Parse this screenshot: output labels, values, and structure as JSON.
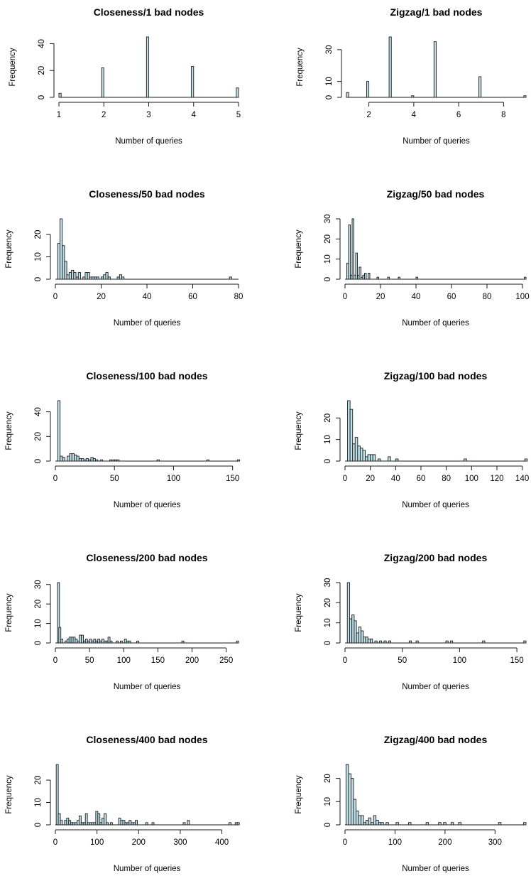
{
  "chart_data": [
    {
      "type": "bar",
      "title": "Closeness/1 bad nodes",
      "xlabel": "Number of queries",
      "ylabel": "Frequency",
      "xlim": [
        1,
        5
      ],
      "ylim": [
        0,
        45
      ],
      "xticks": [
        1,
        2,
        3,
        4,
        5
      ],
      "yticks": [
        0,
        20,
        40
      ],
      "bin_width": 0.05,
      "bins": [
        {
          "x": 1.0,
          "y": 3
        },
        {
          "x": 1.95,
          "y": 22
        },
        {
          "x": 2.95,
          "y": 45
        },
        {
          "x": 3.95,
          "y": 23
        },
        {
          "x": 4.95,
          "y": 7
        }
      ]
    },
    {
      "type": "bar",
      "title": "Zigzag/1 bad nodes",
      "xlabel": "Number of queries",
      "ylabel": "Frequency",
      "xlim": [
        1,
        9
      ],
      "ylim": [
        0,
        38
      ],
      "xticks": [
        2,
        4,
        6,
        8
      ],
      "yticks": [
        0,
        10,
        30
      ],
      "bin_width": 0.1,
      "bins": [
        {
          "x": 1.0,
          "y": 3
        },
        {
          "x": 1.9,
          "y": 10
        },
        {
          "x": 2.9,
          "y": 38
        },
        {
          "x": 3.9,
          "y": 1
        },
        {
          "x": 4.9,
          "y": 35
        },
        {
          "x": 6.9,
          "y": 13
        },
        {
          "x": 8.9,
          "y": 1
        }
      ]
    },
    {
      "type": "bar",
      "title": "Closeness/50 bad nodes",
      "xlabel": "Number of queries",
      "ylabel": "Frequency",
      "xlim": [
        0,
        80
      ],
      "ylim": [
        0,
        27
      ],
      "xticks": [
        0,
        20,
        40,
        60,
        80
      ],
      "yticks": [
        0,
        10,
        20
      ],
      "bin_width": 1,
      "bins": [
        {
          "x": 1,
          "y": 16
        },
        {
          "x": 2,
          "y": 27
        },
        {
          "x": 3,
          "y": 15
        },
        {
          "x": 4,
          "y": 8
        },
        {
          "x": 5,
          "y": 2
        },
        {
          "x": 6,
          "y": 3
        },
        {
          "x": 7,
          "y": 4
        },
        {
          "x": 8,
          "y": 3
        },
        {
          "x": 9,
          "y": 1
        },
        {
          "x": 10,
          "y": 3
        },
        {
          "x": 12,
          "y": 1
        },
        {
          "x": 13,
          "y": 3
        },
        {
          "x": 14,
          "y": 3
        },
        {
          "x": 15,
          "y": 1
        },
        {
          "x": 16,
          "y": 1
        },
        {
          "x": 17,
          "y": 1
        },
        {
          "x": 18,
          "y": 1
        },
        {
          "x": 20,
          "y": 1
        },
        {
          "x": 21,
          "y": 2
        },
        {
          "x": 22,
          "y": 3
        },
        {
          "x": 23,
          "y": 1
        },
        {
          "x": 27,
          "y": 1
        },
        {
          "x": 28,
          "y": 2
        },
        {
          "x": 29,
          "y": 1
        },
        {
          "x": 76,
          "y": 1
        }
      ]
    },
    {
      "type": "bar",
      "title": "Zigzag/50 bad nodes",
      "xlabel": "Number of queries",
      "ylabel": "Frequency",
      "xlim": [
        0,
        102
      ],
      "ylim": [
        0,
        30
      ],
      "xticks": [
        0,
        20,
        40,
        60,
        80,
        100
      ],
      "yticks": [
        0,
        10,
        20,
        30
      ],
      "bin_width": 1,
      "bins": [
        {
          "x": 1,
          "y": 8
        },
        {
          "x": 2,
          "y": 27
        },
        {
          "x": 3,
          "y": 2
        },
        {
          "x": 4,
          "y": 30
        },
        {
          "x": 5,
          "y": 2
        },
        {
          "x": 6,
          "y": 13
        },
        {
          "x": 7,
          "y": 2
        },
        {
          "x": 8,
          "y": 6
        },
        {
          "x": 9,
          "y": 1
        },
        {
          "x": 10,
          "y": 2
        },
        {
          "x": 11,
          "y": 3
        },
        {
          "x": 13,
          "y": 3
        },
        {
          "x": 18,
          "y": 1
        },
        {
          "x": 24,
          "y": 1
        },
        {
          "x": 30,
          "y": 1
        },
        {
          "x": 40,
          "y": 1
        },
        {
          "x": 101,
          "y": 1
        }
      ]
    },
    {
      "type": "bar",
      "title": "Closeness/100 bad nodes",
      "xlabel": "Number of queries",
      "ylabel": "Frequency",
      "xlim": [
        0,
        155
      ],
      "ylim": [
        0,
        49
      ],
      "xticks": [
        0,
        50,
        100,
        150
      ],
      "yticks": [
        0,
        20,
        40
      ],
      "bin_width": 2,
      "bins": [
        {
          "x": 2,
          "y": 49
        },
        {
          "x": 4,
          "y": 4
        },
        {
          "x": 6,
          "y": 3
        },
        {
          "x": 10,
          "y": 4
        },
        {
          "x": 12,
          "y": 6
        },
        {
          "x": 14,
          "y": 6
        },
        {
          "x": 16,
          "y": 5
        },
        {
          "x": 18,
          "y": 4
        },
        {
          "x": 20,
          "y": 2
        },
        {
          "x": 22,
          "y": 2
        },
        {
          "x": 24,
          "y": 1
        },
        {
          "x": 26,
          "y": 2
        },
        {
          "x": 28,
          "y": 1
        },
        {
          "x": 30,
          "y": 3
        },
        {
          "x": 32,
          "y": 2
        },
        {
          "x": 34,
          "y": 1
        },
        {
          "x": 38,
          "y": 1
        },
        {
          "x": 46,
          "y": 1
        },
        {
          "x": 48,
          "y": 1
        },
        {
          "x": 50,
          "y": 1
        },
        {
          "x": 52,
          "y": 1
        },
        {
          "x": 86,
          "y": 1
        },
        {
          "x": 128,
          "y": 1
        },
        {
          "x": 154,
          "y": 1
        }
      ]
    },
    {
      "type": "bar",
      "title": "Zigzag/100 bad nodes",
      "xlabel": "Number of queries",
      "ylabel": "Frequency",
      "xlim": [
        0,
        143
      ],
      "ylim": [
        0,
        28
      ],
      "xticks": [
        0,
        20,
        40,
        60,
        80,
        100,
        120,
        140
      ],
      "yticks": [
        0,
        10,
        20
      ],
      "bin_width": 2,
      "bins": [
        {
          "x": 2,
          "y": 28
        },
        {
          "x": 4,
          "y": 24
        },
        {
          "x": 6,
          "y": 8
        },
        {
          "x": 8,
          "y": 11
        },
        {
          "x": 10,
          "y": 7
        },
        {
          "x": 12,
          "y": 6
        },
        {
          "x": 14,
          "y": 5
        },
        {
          "x": 16,
          "y": 2
        },
        {
          "x": 18,
          "y": 3
        },
        {
          "x": 20,
          "y": 3
        },
        {
          "x": 22,
          "y": 3
        },
        {
          "x": 26,
          "y": 1
        },
        {
          "x": 34,
          "y": 2
        },
        {
          "x": 40,
          "y": 1
        },
        {
          "x": 94,
          "y": 1
        },
        {
          "x": 142,
          "y": 1
        }
      ]
    },
    {
      "type": "bar",
      "title": "Closeness/200 bad nodes",
      "xlabel": "Number of queries",
      "ylabel": "Frequency",
      "xlim": [
        0,
        268
      ],
      "ylim": [
        0,
        31
      ],
      "xticks": [
        0,
        50,
        100,
        150,
        200,
        250
      ],
      "yticks": [
        0,
        10,
        20,
        30
      ],
      "bin_width": 3,
      "bins": [
        {
          "x": 3,
          "y": 31
        },
        {
          "x": 5,
          "y": 8
        },
        {
          "x": 8,
          "y": 2
        },
        {
          "x": 14,
          "y": 1
        },
        {
          "x": 17,
          "y": 2
        },
        {
          "x": 20,
          "y": 3
        },
        {
          "x": 23,
          "y": 3
        },
        {
          "x": 26,
          "y": 3
        },
        {
          "x": 29,
          "y": 2
        },
        {
          "x": 32,
          "y": 1
        },
        {
          "x": 35,
          "y": 4
        },
        {
          "x": 38,
          "y": 4
        },
        {
          "x": 41,
          "y": 1
        },
        {
          "x": 44,
          "y": 2
        },
        {
          "x": 47,
          "y": 1
        },
        {
          "x": 50,
          "y": 2
        },
        {
          "x": 53,
          "y": 1
        },
        {
          "x": 56,
          "y": 2
        },
        {
          "x": 59,
          "y": 1
        },
        {
          "x": 62,
          "y": 2
        },
        {
          "x": 65,
          "y": 1
        },
        {
          "x": 68,
          "y": 2
        },
        {
          "x": 71,
          "y": 1
        },
        {
          "x": 74,
          "y": 1
        },
        {
          "x": 77,
          "y": 3
        },
        {
          "x": 80,
          "y": 1
        },
        {
          "x": 89,
          "y": 1
        },
        {
          "x": 95,
          "y": 1
        },
        {
          "x": 101,
          "y": 2
        },
        {
          "x": 104,
          "y": 1
        },
        {
          "x": 107,
          "y": 1
        },
        {
          "x": 119,
          "y": 1
        },
        {
          "x": 185,
          "y": 1
        },
        {
          "x": 265,
          "y": 1
        }
      ]
    },
    {
      "type": "bar",
      "title": "Zigzag/200 bad nodes",
      "xlabel": "Number of queries",
      "ylabel": "Frequency",
      "xlim": [
        0,
        158
      ],
      "ylim": [
        0,
        30
      ],
      "xticks": [
        0,
        50,
        100,
        150
      ],
      "yticks": [
        0,
        10,
        20,
        30
      ],
      "bin_width": 2,
      "bins": [
        {
          "x": 2,
          "y": 30
        },
        {
          "x": 4,
          "y": 12
        },
        {
          "x": 6,
          "y": 14
        },
        {
          "x": 8,
          "y": 11
        },
        {
          "x": 10,
          "y": 5
        },
        {
          "x": 12,
          "y": 8
        },
        {
          "x": 14,
          "y": 6
        },
        {
          "x": 16,
          "y": 3
        },
        {
          "x": 18,
          "y": 3
        },
        {
          "x": 20,
          "y": 2
        },
        {
          "x": 22,
          "y": 2
        },
        {
          "x": 26,
          "y": 1
        },
        {
          "x": 30,
          "y": 1
        },
        {
          "x": 34,
          "y": 1
        },
        {
          "x": 38,
          "y": 1
        },
        {
          "x": 56,
          "y": 1
        },
        {
          "x": 62,
          "y": 1
        },
        {
          "x": 88,
          "y": 1
        },
        {
          "x": 92,
          "y": 1
        },
        {
          "x": 120,
          "y": 1
        },
        {
          "x": 156,
          "y": 1
        }
      ]
    },
    {
      "type": "bar",
      "title": "Closeness/400 bad nodes",
      "xlabel": "Number of queries",
      "ylabel": "Frequency",
      "xlim": [
        0,
        440
      ],
      "ylim": [
        0,
        27
      ],
      "xticks": [
        0,
        100,
        200,
        300,
        400
      ],
      "yticks": [
        0,
        10,
        20
      ],
      "bin_width": 5,
      "bins": [
        {
          "x": 2,
          "y": 27
        },
        {
          "x": 7,
          "y": 5
        },
        {
          "x": 12,
          "y": 2
        },
        {
          "x": 22,
          "y": 2
        },
        {
          "x": 27,
          "y": 3
        },
        {
          "x": 32,
          "y": 2
        },
        {
          "x": 37,
          "y": 1
        },
        {
          "x": 42,
          "y": 1
        },
        {
          "x": 47,
          "y": 1
        },
        {
          "x": 52,
          "y": 2
        },
        {
          "x": 57,
          "y": 4
        },
        {
          "x": 62,
          "y": 1
        },
        {
          "x": 67,
          "y": 1
        },
        {
          "x": 72,
          "y": 5
        },
        {
          "x": 77,
          "y": 1
        },
        {
          "x": 82,
          "y": 1
        },
        {
          "x": 87,
          "y": 1
        },
        {
          "x": 92,
          "y": 1
        },
        {
          "x": 97,
          "y": 6
        },
        {
          "x": 102,
          "y": 5
        },
        {
          "x": 107,
          "y": 1
        },
        {
          "x": 112,
          "y": 3
        },
        {
          "x": 117,
          "y": 5
        },
        {
          "x": 122,
          "y": 1
        },
        {
          "x": 132,
          "y": 1
        },
        {
          "x": 152,
          "y": 3
        },
        {
          "x": 157,
          "y": 2
        },
        {
          "x": 162,
          "y": 2
        },
        {
          "x": 167,
          "y": 1
        },
        {
          "x": 172,
          "y": 1
        },
        {
          "x": 177,
          "y": 2
        },
        {
          "x": 182,
          "y": 1
        },
        {
          "x": 187,
          "y": 1
        },
        {
          "x": 192,
          "y": 2
        },
        {
          "x": 217,
          "y": 1
        },
        {
          "x": 232,
          "y": 1
        },
        {
          "x": 307,
          "y": 1
        },
        {
          "x": 317,
          "y": 2
        },
        {
          "x": 417,
          "y": 1
        },
        {
          "x": 432,
          "y": 1
        },
        {
          "x": 437,
          "y": 1
        }
      ]
    },
    {
      "type": "bar",
      "title": "Zigzag/400 bad nodes",
      "xlabel": "Number of queries",
      "ylabel": "Frequency",
      "xlim": [
        0,
        362
      ],
      "ylim": [
        0,
        26
      ],
      "xticks": [
        0,
        100,
        200,
        300
      ],
      "yticks": [
        0,
        10,
        20
      ],
      "bin_width": 5,
      "bins": [
        {
          "x": 2,
          "y": 26
        },
        {
          "x": 7,
          "y": 22
        },
        {
          "x": 12,
          "y": 20
        },
        {
          "x": 17,
          "y": 11
        },
        {
          "x": 22,
          "y": 6
        },
        {
          "x": 27,
          "y": 4
        },
        {
          "x": 32,
          "y": 4
        },
        {
          "x": 37,
          "y": 1
        },
        {
          "x": 42,
          "y": 2
        },
        {
          "x": 47,
          "y": 3
        },
        {
          "x": 52,
          "y": 1
        },
        {
          "x": 57,
          "y": 4
        },
        {
          "x": 62,
          "y": 2
        },
        {
          "x": 67,
          "y": 1
        },
        {
          "x": 72,
          "y": 1
        },
        {
          "x": 82,
          "y": 1
        },
        {
          "x": 102,
          "y": 1
        },
        {
          "x": 127,
          "y": 1
        },
        {
          "x": 162,
          "y": 1
        },
        {
          "x": 187,
          "y": 1
        },
        {
          "x": 197,
          "y": 1
        },
        {
          "x": 212,
          "y": 1
        },
        {
          "x": 227,
          "y": 1
        },
        {
          "x": 307,
          "y": 1
        },
        {
          "x": 357,
          "y": 1
        }
      ]
    }
  ]
}
